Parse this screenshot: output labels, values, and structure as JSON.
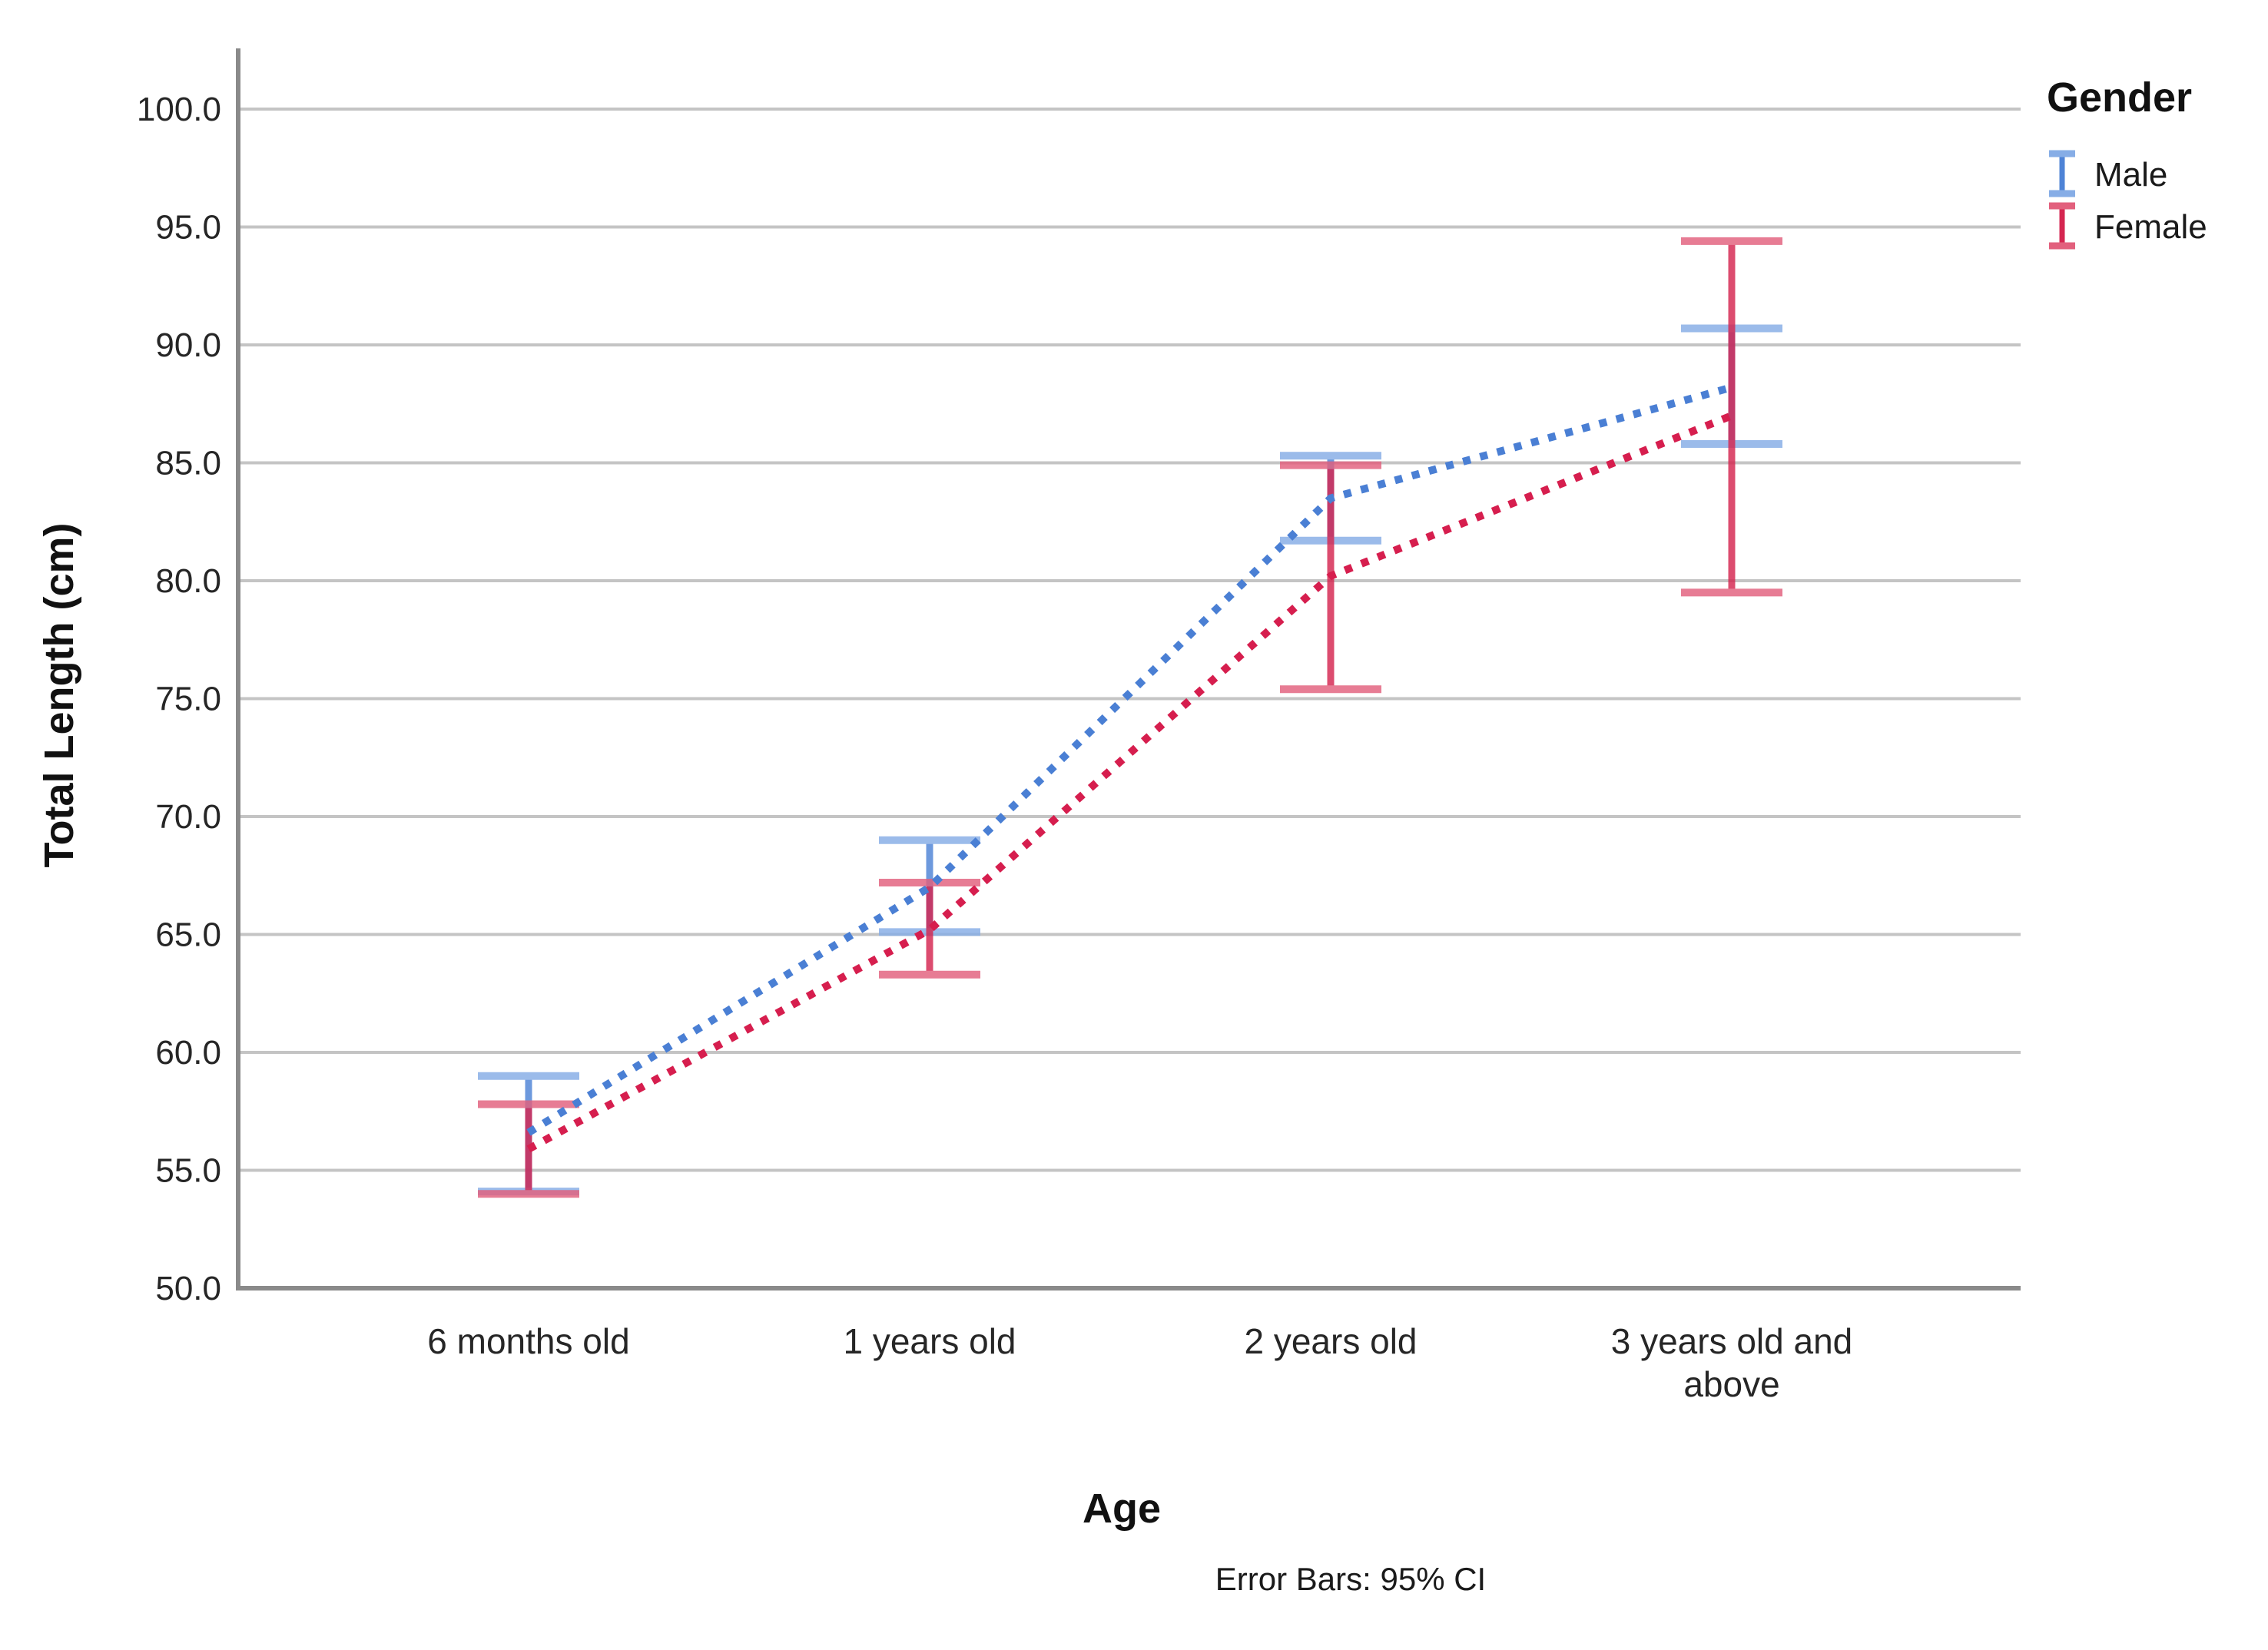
{
  "chart_data": {
    "type": "line",
    "subtype": "means-with-error-bars",
    "line_style": "dotted",
    "categories": [
      "6 months old",
      "1 years old",
      "2 years old",
      "3 years old and above"
    ],
    "categories_wrapped": [
      [
        "6 months old"
      ],
      [
        "1 years old"
      ],
      [
        "2 years old"
      ],
      [
        "3 years old and",
        "above"
      ]
    ],
    "series": [
      {
        "name": "Male",
        "color": "#4E83D6",
        "line_color": "#4A7FD4",
        "cap_color": "#86ADE6",
        "means": [
          56.6,
          67.0,
          83.5,
          88.2
        ],
        "ci_low": [
          54.1,
          65.1,
          81.7,
          85.8
        ],
        "ci_high": [
          59.0,
          69.0,
          85.3,
          90.7
        ]
      },
      {
        "name": "Female",
        "color": "#D52650",
        "line_color": "#D61E4E",
        "cap_color": "#E2607D",
        "means": [
          55.9,
          65.2,
          80.2,
          87.0
        ],
        "ci_low": [
          54.0,
          63.3,
          75.4,
          79.5
        ],
        "ci_high": [
          57.8,
          67.2,
          84.9,
          94.4
        ]
      }
    ],
    "xlabel": "Age",
    "ylabel": "Total Length (cm)",
    "ylim": [
      50.0,
      102.5
    ],
    "y_ticks": [
      50,
      55,
      60,
      65,
      70,
      75,
      80,
      85,
      90,
      95,
      100
    ],
    "y_tick_labels": [
      "50.0",
      "55.0",
      "60.0",
      "65.0",
      "70.0",
      "75.0",
      "80.0",
      "85.0",
      "90.0",
      "95.0",
      "100.0"
    ],
    "grid": true,
    "gridline_color": "#c4c4c4",
    "axis_line_color": "#8a8a8a",
    "legend_title": "Gender",
    "legend_position": "top-right",
    "caption": "Error Bars: 95% CI"
  }
}
